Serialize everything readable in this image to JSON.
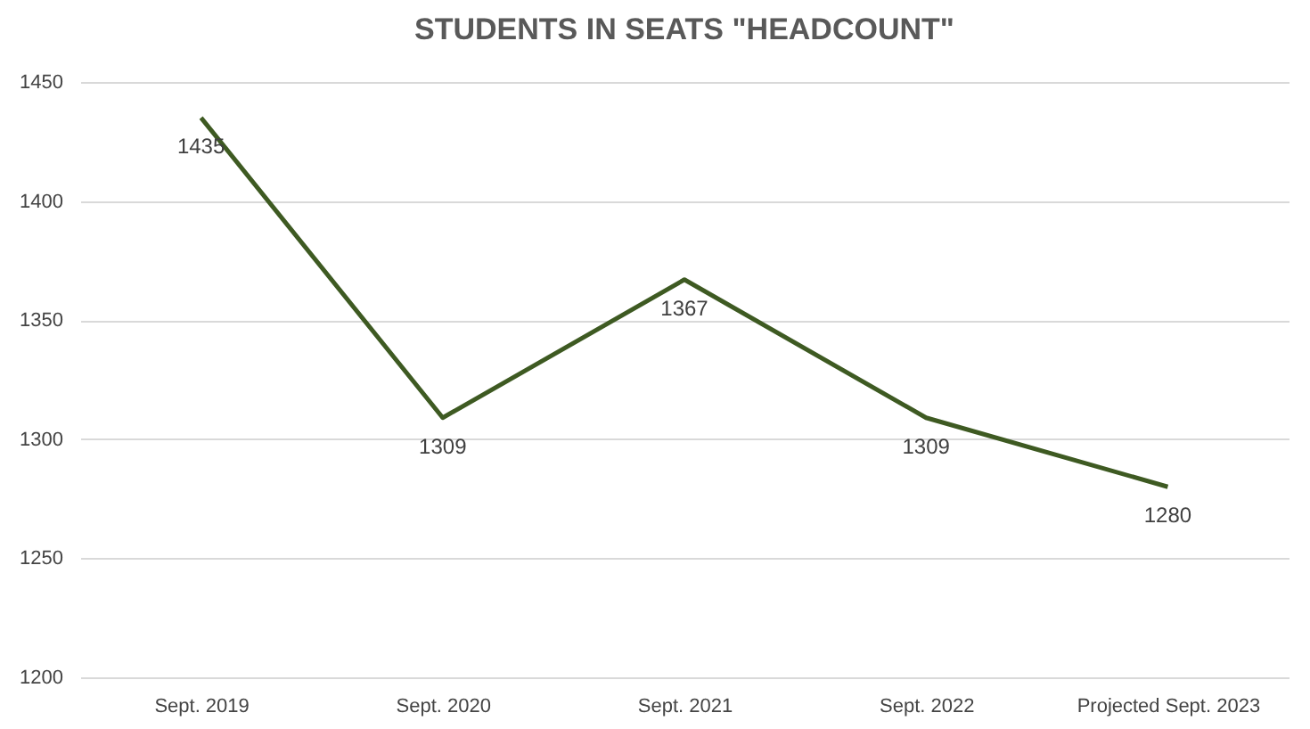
{
  "chart_data": {
    "type": "line",
    "title": "STUDENTS IN SEATS \"HEADCOUNT\"",
    "categories": [
      "Sept. 2019",
      "Sept. 2020",
      "Sept. 2021",
      "Sept. 2022",
      "Projected Sept. 2023"
    ],
    "series": [
      {
        "color": "#3e5a22",
        "values": [
          1435,
          1309,
          1367,
          1309,
          1280
        ]
      }
    ],
    "ylim": [
      1200,
      1450
    ],
    "yticks": [
      1200,
      1250,
      1300,
      1350,
      1400,
      1450
    ],
    "grid": "y",
    "data_labels": true,
    "marker": "none",
    "line_style": "solid"
  }
}
